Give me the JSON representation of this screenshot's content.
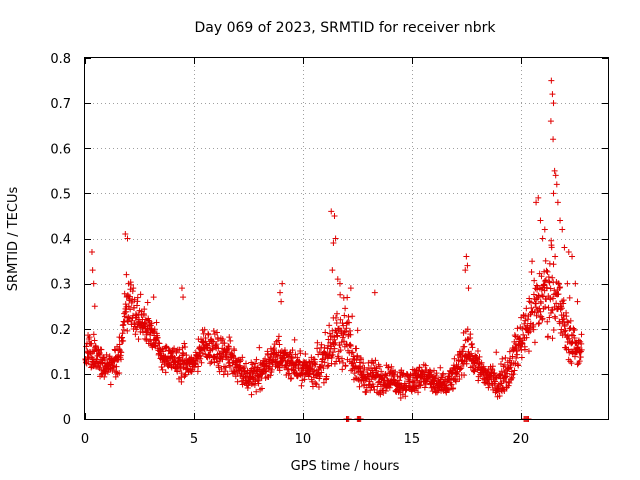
{
  "chart_data": {
    "type": "scatter",
    "title": "Day 069 of 2023, SRMTID for receiver nbrk",
    "xlabel": "GPS time / hours",
    "ylabel": "SRMTID / TECUs",
    "xlim": [
      0,
      24
    ],
    "ylim": [
      0,
      0.8
    ],
    "xticks": [
      0,
      5,
      10,
      15,
      20
    ],
    "xtick_labels": [
      "0",
      "5",
      "10",
      "15",
      "20"
    ],
    "yticks": [
      0,
      0.1,
      0.2,
      0.3,
      0.4,
      0.5,
      0.6,
      0.7,
      0.8
    ],
    "ytick_labels": [
      "0",
      "0.1",
      "0.2",
      "0.3",
      "0.4",
      "0.5",
      "0.6",
      "0.7",
      "0.8"
    ],
    "grid": true,
    "marker": "+",
    "color": "#e00000",
    "series": [
      {
        "name": "SRMTID",
        "profile_x": [
          0,
          0.5,
          1.0,
          1.5,
          2.0,
          2.5,
          3.0,
          3.5,
          4.0,
          4.5,
          5.0,
          5.5,
          6.0,
          6.5,
          7.0,
          7.5,
          8.0,
          8.5,
          9.0,
          9.5,
          10.0,
          10.5,
          11.0,
          11.5,
          12.0,
          12.5,
          13.0,
          13.5,
          14.0,
          14.5,
          15.0,
          15.5,
          16.0,
          16.5,
          17.0,
          17.5,
          18.0,
          18.5,
          19.0,
          19.5,
          20.0,
          20.5,
          21.0,
          21.5,
          22.0,
          22.5,
          22.8
        ],
        "profile_center": [
          0.15,
          0.14,
          0.11,
          0.12,
          0.27,
          0.21,
          0.2,
          0.14,
          0.13,
          0.12,
          0.12,
          0.17,
          0.15,
          0.14,
          0.12,
          0.09,
          0.1,
          0.13,
          0.14,
          0.12,
          0.11,
          0.11,
          0.13,
          0.17,
          0.18,
          0.11,
          0.09,
          0.09,
          0.09,
          0.08,
          0.08,
          0.1,
          0.08,
          0.07,
          0.1,
          0.16,
          0.12,
          0.09,
          0.08,
          0.11,
          0.18,
          0.24,
          0.27,
          0.3,
          0.2,
          0.16,
          0.15
        ],
        "profile_spread": [
          0.04,
          0.05,
          0.03,
          0.04,
          0.06,
          0.04,
          0.04,
          0.03,
          0.03,
          0.04,
          0.03,
          0.04,
          0.04,
          0.04,
          0.04,
          0.03,
          0.04,
          0.04,
          0.04,
          0.03,
          0.03,
          0.04,
          0.05,
          0.06,
          0.06,
          0.04,
          0.04,
          0.04,
          0.03,
          0.03,
          0.03,
          0.03,
          0.03,
          0.03,
          0.03,
          0.05,
          0.04,
          0.03,
          0.03,
          0.04,
          0.05,
          0.08,
          0.08,
          0.1,
          0.07,
          0.04,
          0.04
        ],
        "spikes": [
          [
            0.32,
            0.37
          ],
          [
            0.35,
            0.33
          ],
          [
            0.4,
            0.3
          ],
          [
            0.45,
            0.25
          ],
          [
            1.85,
            0.41
          ],
          [
            1.95,
            0.4
          ],
          [
            1.9,
            0.32
          ],
          [
            2.0,
            0.3
          ],
          [
            3.15,
            0.27
          ],
          [
            4.45,
            0.29
          ],
          [
            4.5,
            0.27
          ],
          [
            9.05,
            0.3
          ],
          [
            8.95,
            0.28
          ],
          [
            9.0,
            0.26
          ],
          [
            11.3,
            0.46
          ],
          [
            11.45,
            0.45
          ],
          [
            11.4,
            0.39
          ],
          [
            11.5,
            0.4
          ],
          [
            11.35,
            0.33
          ],
          [
            11.6,
            0.31
          ],
          [
            11.7,
            0.3
          ],
          [
            12.2,
            0.29
          ],
          [
            13.3,
            0.28
          ],
          [
            17.5,
            0.36
          ],
          [
            17.55,
            0.34
          ],
          [
            17.45,
            0.33
          ],
          [
            17.6,
            0.29
          ],
          [
            20.7,
            0.48
          ],
          [
            20.8,
            0.49
          ],
          [
            20.9,
            0.44
          ],
          [
            21.0,
            0.4
          ],
          [
            21.1,
            0.42
          ],
          [
            21.4,
            0.75
          ],
          [
            21.45,
            0.72
          ],
          [
            21.5,
            0.7
          ],
          [
            21.38,
            0.66
          ],
          [
            21.48,
            0.62
          ],
          [
            21.55,
            0.55
          ],
          [
            21.6,
            0.54
          ],
          [
            21.65,
            0.52
          ],
          [
            21.5,
            0.5
          ],
          [
            21.7,
            0.48
          ],
          [
            21.8,
            0.44
          ],
          [
            21.9,
            0.42
          ],
          [
            22.0,
            0.38
          ],
          [
            22.2,
            0.37
          ],
          [
            22.35,
            0.36
          ],
          [
            22.5,
            0.3
          ],
          [
            22.6,
            0.26
          ]
        ],
        "zero_points": [
          12.0,
          12.05,
          12.1,
          12.5,
          12.55,
          12.6,
          12.65,
          20.15,
          20.2,
          20.25,
          20.3,
          20.35
        ]
      }
    ]
  }
}
